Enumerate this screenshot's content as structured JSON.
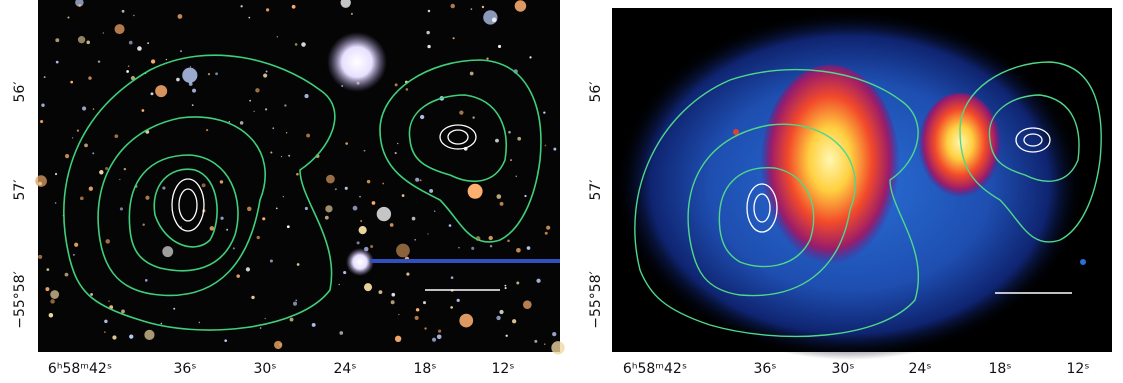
{
  "panels": [
    {
      "x_labels": [
        "6ʰ58ᵐ42ˢ",
        "36ˢ",
        "30ˢ",
        "24ˢ",
        "18ˢ",
        "12ˢ"
      ],
      "y_labels": [
        "56′",
        "57′",
        "−55°58′"
      ]
    },
    {
      "x_labels": [
        "6ʰ58ᵐ42ˢ",
        "36ˢ",
        "30ˢ",
        "24ˢ",
        "18ˢ",
        "12ˢ"
      ],
      "y_labels": [
        "56′",
        "57′",
        "−55°58′"
      ]
    }
  ]
}
